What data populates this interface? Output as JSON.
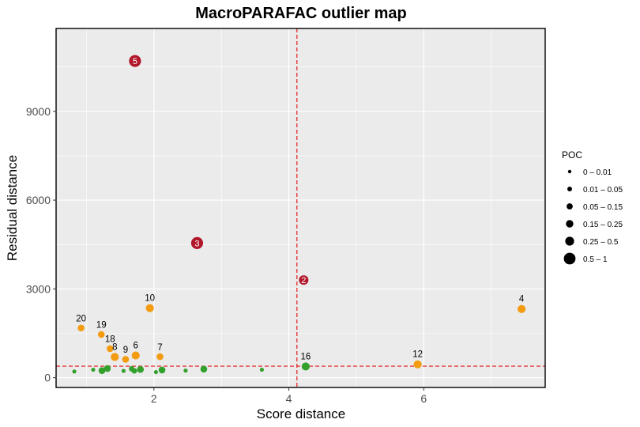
{
  "chart_data": {
    "type": "scatter",
    "title": "MacroPARAFAC outlier map",
    "xlabel": "Score distance",
    "ylabel": "Residual distance",
    "xlim": [
      0.55,
      7.8
    ],
    "ylim": [
      -330,
      11800
    ],
    "x_ticks": [
      2,
      4,
      6
    ],
    "y_ticks": [
      0,
      3000,
      6000,
      9000
    ],
    "grid": true,
    "cutoffs": {
      "score_distance": 4.12,
      "residual_distance": 390,
      "color": "#e31a1c"
    },
    "colors": {
      "regular": "#33a02c",
      "orthogonal": "#f39c12",
      "bad": "#b2182b"
    },
    "legend": {
      "title": "POC",
      "position": "right",
      "entries": [
        "0 – 0.01",
        "0.01 – 0.05",
        "0.05 – 0.15",
        "0.15 – 0.25",
        "0.25 – 0.5",
        "0.5 – 1"
      ]
    },
    "points": [
      {
        "x": 1.72,
        "y": 10700,
        "label": "5",
        "group": "bad",
        "size": 6
      },
      {
        "x": 2.64,
        "y": 4550,
        "label": "3",
        "group": "bad",
        "size": 6
      },
      {
        "x": 4.22,
        "y": 3300,
        "label": "2",
        "group": "bad",
        "size": 5
      },
      {
        "x": 7.45,
        "y": 2320,
        "label": "4",
        "group": "orthogonal",
        "size": 4
      },
      {
        "x": 1.94,
        "y": 2350,
        "label": "10",
        "group": "orthogonal",
        "size": 4
      },
      {
        "x": 0.92,
        "y": 1680,
        "label": "20",
        "group": "orthogonal",
        "size": 3
      },
      {
        "x": 1.22,
        "y": 1460,
        "label": "19",
        "group": "orthogonal",
        "size": 3
      },
      {
        "x": 1.35,
        "y": 980,
        "label": "18",
        "group": "orthogonal",
        "size": 3
      },
      {
        "x": 1.42,
        "y": 700,
        "label": "8",
        "group": "orthogonal",
        "size": 4
      },
      {
        "x": 1.58,
        "y": 620,
        "label": "9",
        "group": "orthogonal",
        "size": 3
      },
      {
        "x": 1.73,
        "y": 750,
        "label": "6",
        "group": "orthogonal",
        "size": 4
      },
      {
        "x": 2.09,
        "y": 710,
        "label": "7",
        "group": "orthogonal",
        "size": 3
      },
      {
        "x": 5.91,
        "y": 450,
        "label": "12",
        "group": "orthogonal",
        "size": 4
      },
      {
        "x": 4.25,
        "y": 380,
        "label": "16",
        "group": "regular",
        "size": 4
      },
      {
        "x": 0.82,
        "y": 210,
        "label": "",
        "group": "regular",
        "size": 1
      },
      {
        "x": 1.1,
        "y": 270,
        "label": "",
        "group": "regular",
        "size": 1
      },
      {
        "x": 1.23,
        "y": 240,
        "label": "",
        "group": "regular",
        "size": 3
      },
      {
        "x": 1.31,
        "y": 310,
        "label": "",
        "group": "regular",
        "size": 3
      },
      {
        "x": 1.55,
        "y": 230,
        "label": "",
        "group": "regular",
        "size": 1
      },
      {
        "x": 1.67,
        "y": 300,
        "label": "",
        "group": "regular",
        "size": 2
      },
      {
        "x": 1.71,
        "y": 230,
        "label": "",
        "group": "regular",
        "size": 2
      },
      {
        "x": 1.8,
        "y": 280,
        "label": "",
        "group": "regular",
        "size": 3
      },
      {
        "x": 2.03,
        "y": 190,
        "label": "",
        "group": "regular",
        "size": 1
      },
      {
        "x": 2.12,
        "y": 260,
        "label": "",
        "group": "regular",
        "size": 3
      },
      {
        "x": 2.47,
        "y": 240,
        "label": "",
        "group": "regular",
        "size": 1
      },
      {
        "x": 2.74,
        "y": 290,
        "label": "",
        "group": "regular",
        "size": 3
      },
      {
        "x": 3.6,
        "y": 270,
        "label": "",
        "group": "regular",
        "size": 1
      }
    ]
  }
}
